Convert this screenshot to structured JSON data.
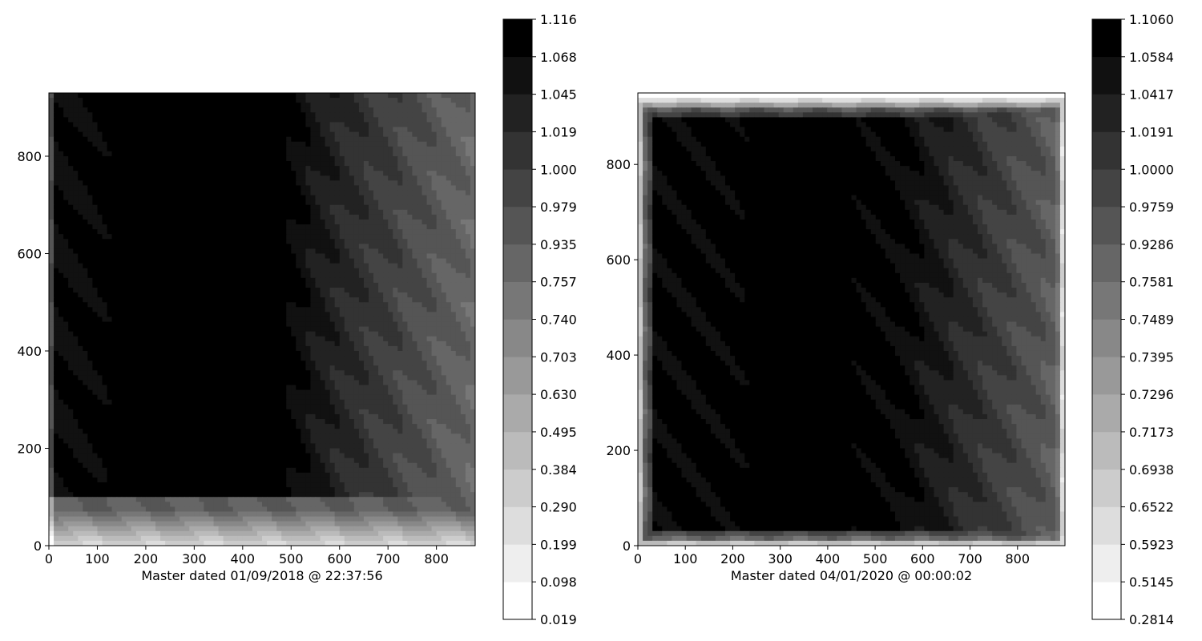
{
  "chart_data": [
    {
      "type": "heatmap",
      "title": "",
      "xlabel": "Master dated 01/09/2018 @ 22:37:56",
      "ylabel": "",
      "xlim": [
        0,
        880
      ],
      "ylim": [
        0,
        930
      ],
      "x_ticks": [
        0,
        100,
        200,
        300,
        400,
        500,
        600,
        700,
        800
      ],
      "y_ticks": [
        0,
        200,
        400,
        600,
        800
      ],
      "colormap": "gray_r",
      "colorbar_levels": [
        "0.019",
        "0.098",
        "0.199",
        "0.290",
        "0.384",
        "0.495",
        "0.630",
        "0.703",
        "0.740",
        "0.757",
        "0.935",
        "0.979",
        "1.000",
        "1.019",
        "1.045",
        "1.068",
        "1.116"
      ]
    },
    {
      "type": "heatmap",
      "title": "",
      "xlabel": "Master dated 04/01/2020 @ 00:00:02",
      "ylabel": "",
      "xlim": [
        0,
        900
      ],
      "ylim": [
        0,
        950
      ],
      "x_ticks": [
        0,
        100,
        200,
        300,
        400,
        500,
        600,
        700,
        800
      ],
      "y_ticks": [
        0,
        200,
        400,
        600,
        800
      ],
      "colormap": "gray_r",
      "colorbar_levels": [
        "0.2814",
        "0.5145",
        "0.5923",
        "0.6522",
        "0.6938",
        "0.7173",
        "0.7296",
        "0.7395",
        "0.7489",
        "0.7581",
        "0.9286",
        "0.9759",
        "1.0000",
        "1.0191",
        "1.0417",
        "1.0584",
        "1.1060"
      ]
    }
  ]
}
